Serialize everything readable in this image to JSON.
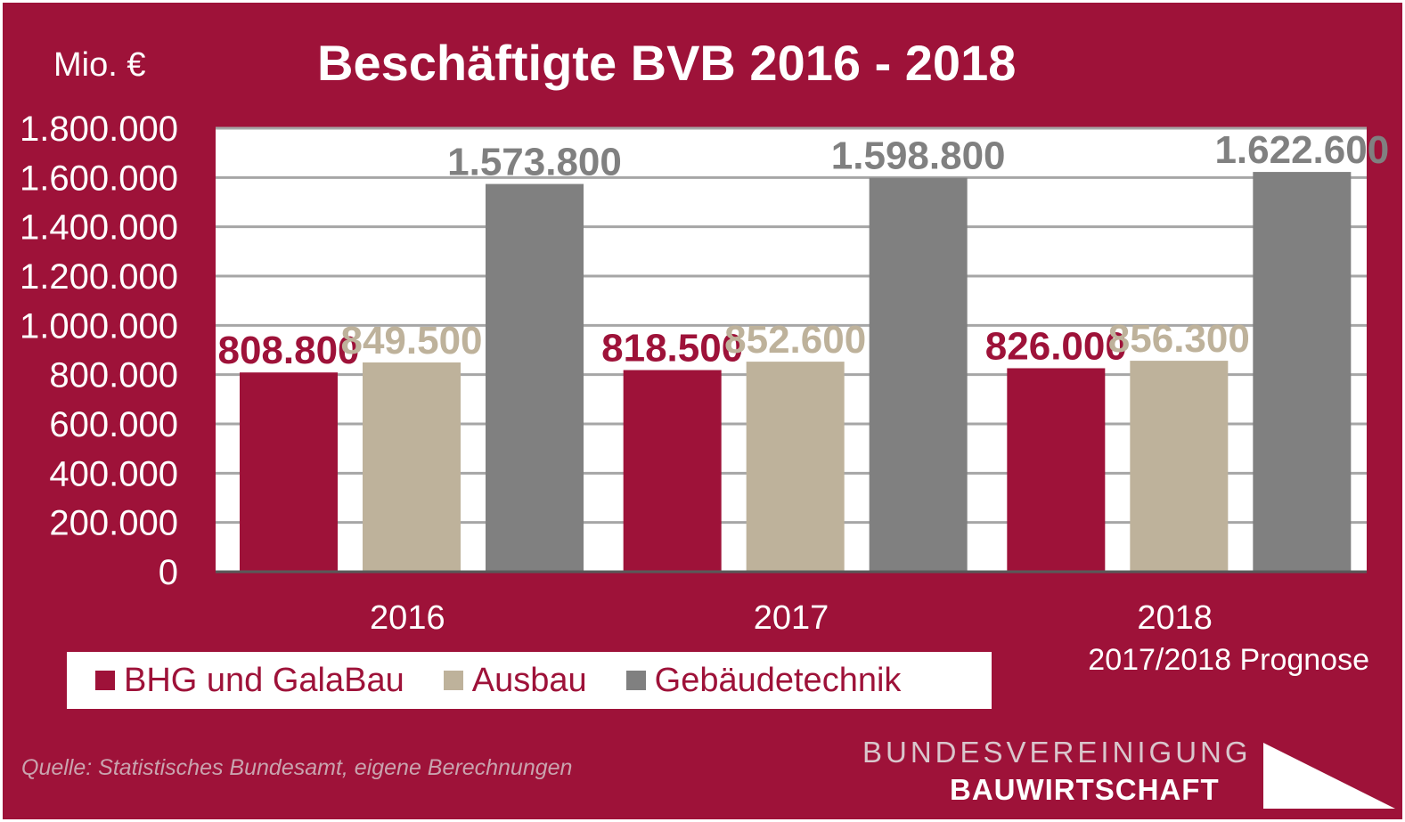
{
  "unit_label": "Mio. €",
  "note": "2017/2018 Prognose",
  "source": "Quelle: Statistisches Bundesamt, eigene Berechnungen",
  "logo": {
    "line1": "BUNDESVEREINIGUNG",
    "line2": "BAUWIRTSCHAFT"
  },
  "colors": {
    "background": "#9e1239",
    "plot_background": "#ffffff",
    "gridline": "#a6a6a6",
    "axis_text": "#ffffff"
  },
  "chart_data": {
    "type": "bar",
    "title": "Beschäftigte BVB 2016 - 2018",
    "xlabel": "",
    "ylabel": "",
    "categories": [
      "2016",
      "2017",
      "2018"
    ],
    "series": [
      {
        "name": "BHG und GalaBau",
        "values": [
          808800,
          818500,
          826000
        ],
        "labels": [
          "808.800",
          "818.500",
          "826.000"
        ],
        "color": "#9e1239"
      },
      {
        "name": "Ausbau",
        "values": [
          849500,
          852600,
          856300
        ],
        "labels": [
          "849.500",
          "852.600",
          "856.300"
        ],
        "color": "#beb29b"
      },
      {
        "name": "Gebäudetechnik",
        "values": [
          1573800,
          1598800,
          1622600
        ],
        "labels": [
          "1.573.800",
          "1.598.800",
          "1.622.600"
        ],
        "color": "#808080"
      }
    ],
    "ylim": [
      0,
      1800000
    ],
    "yticks": [
      0,
      200000,
      400000,
      600000,
      800000,
      1000000,
      1200000,
      1400000,
      1600000,
      1800000
    ],
    "ytick_labels": [
      "0",
      "200.000",
      "400.000",
      "600.000",
      "800.000",
      "1.000.000",
      "1.200.000",
      "1.400.000",
      "1.600.000",
      "1.800.000"
    ],
    "grid": true,
    "legend_position": "bottom"
  }
}
